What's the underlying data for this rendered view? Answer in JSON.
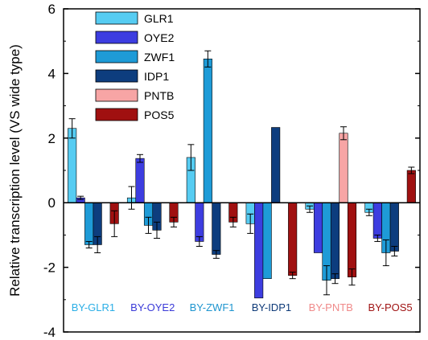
{
  "chart_data": {
    "type": "bar",
    "title": "",
    "xlabel": "",
    "ylabel": "Relative transcription level (VS wide type)",
    "ylim": [
      -4,
      6
    ],
    "yticks": [
      -4,
      -2,
      0,
      2,
      4,
      6
    ],
    "grid": false,
    "legend_position": "top-left",
    "categories": [
      "BY-GLR1",
      "BY-OYE2",
      "BY-ZWF1",
      "BY-IDP1",
      "BY-PNTB",
      "BY-POS5"
    ],
    "category_colors": [
      "#2AAEE6",
      "#3A3AD8",
      "#1E95CF",
      "#0E3A78",
      "#F08A8A",
      "#A01414"
    ],
    "series": [
      {
        "name": "GLR1",
        "color": "#56CCF2",
        "values": [
          2.3,
          0.15,
          1.4,
          -0.65,
          -0.2,
          -0.3
        ],
        "errors": [
          0.3,
          0.35,
          0.4,
          0.3,
          0.1,
          0.1
        ]
      },
      {
        "name": "OYE2",
        "color": "#3D3DE0",
        "values": [
          0.15,
          1.37,
          -1.2,
          -2.95,
          -1.55,
          -1.1
        ],
        "errors": [
          0.05,
          0.12,
          0.15,
          0.0,
          0.0,
          0.1
        ]
      },
      {
        "name": "ZWF1",
        "color": "#1E9BD7",
        "values": [
          -1.3,
          -0.7,
          4.45,
          -2.35,
          -2.4,
          -1.55
        ],
        "errors": [
          0.1,
          0.25,
          0.25,
          0.0,
          0.45,
          0.4
        ]
      },
      {
        "name": "IDP1",
        "color": "#0D3D7E",
        "values": [
          -1.3,
          -0.85,
          -1.6,
          2.33,
          -2.35,
          -1.5
        ],
        "errors": [
          0.25,
          0.25,
          0.12,
          0.0,
          0.15,
          0.15
        ]
      },
      {
        "name": "PNTB",
        "color": "#F7A5A5",
        "values": [
          0,
          0,
          0,
          0,
          2.15,
          0
        ],
        "errors": [
          0,
          0,
          0,
          0,
          0.2,
          0
        ]
      },
      {
        "name": "POS5",
        "color": "#A01010",
        "values": [
          -0.65,
          -0.6,
          -0.6,
          -2.25,
          -2.3,
          1.0
        ],
        "errors": [
          0.4,
          0.15,
          0.15,
          0.1,
          0.25,
          0.1
        ]
      }
    ]
  }
}
